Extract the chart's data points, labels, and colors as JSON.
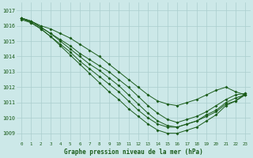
{
  "title": "Graphe pression niveau de la mer (hPa)",
  "bg_color": "#cce8e8",
  "grid_color": "#aacece",
  "line_color": "#1a5c1a",
  "xlim": [
    -0.5,
    23.5
  ],
  "ylim": [
    1008.5,
    1017.5
  ],
  "yticks": [
    1009,
    1010,
    1011,
    1012,
    1013,
    1014,
    1015,
    1016,
    1017
  ],
  "xticks": [
    0,
    1,
    2,
    3,
    4,
    5,
    6,
    7,
    8,
    9,
    10,
    11,
    12,
    13,
    14,
    15,
    16,
    17,
    18,
    19,
    20,
    21,
    22,
    23
  ],
  "series": [
    [
      1016.5,
      1016.3,
      1016.0,
      1015.8,
      1015.5,
      1015.2,
      1014.8,
      1014.4,
      1014.0,
      1013.5,
      1013.0,
      1012.5,
      1012.0,
      1011.5,
      1011.1,
      1010.9,
      1010.8,
      1011.0,
      1011.2,
      1011.5,
      1011.8,
      1012.0,
      1011.7,
      1011.5
    ],
    [
      1016.5,
      1016.3,
      1015.9,
      1015.5,
      1015.1,
      1014.7,
      1014.2,
      1013.8,
      1013.4,
      1013.0,
      1012.5,
      1012.0,
      1011.4,
      1010.8,
      1010.3,
      1009.9,
      1009.7,
      1009.9,
      1010.1,
      1010.4,
      1010.8,
      1011.2,
      1011.5,
      1011.6
    ],
    [
      1016.5,
      1016.3,
      1015.9,
      1015.5,
      1015.0,
      1014.5,
      1014.0,
      1013.5,
      1013.1,
      1012.6,
      1012.1,
      1011.5,
      1010.9,
      1010.3,
      1009.8,
      1009.5,
      1009.4,
      1009.6,
      1009.8,
      1010.2,
      1010.5,
      1011.0,
      1011.3,
      1011.5
    ],
    [
      1016.5,
      1016.2,
      1015.8,
      1015.3,
      1014.8,
      1014.3,
      1013.7,
      1013.2,
      1012.7,
      1012.2,
      1011.7,
      1011.1,
      1010.5,
      1010.0,
      1009.6,
      1009.4,
      1009.4,
      1009.6,
      1009.8,
      1010.1,
      1010.4,
      1010.9,
      1011.1,
      1011.6
    ],
    [
      1016.4,
      1016.2,
      1015.8,
      1015.3,
      1014.7,
      1014.1,
      1013.5,
      1012.9,
      1012.3,
      1011.7,
      1011.2,
      1010.6,
      1010.1,
      1009.6,
      1009.2,
      1009.0,
      1009.0,
      1009.2,
      1009.4,
      1009.8,
      1010.2,
      1010.8,
      1011.1,
      1011.5
    ]
  ]
}
